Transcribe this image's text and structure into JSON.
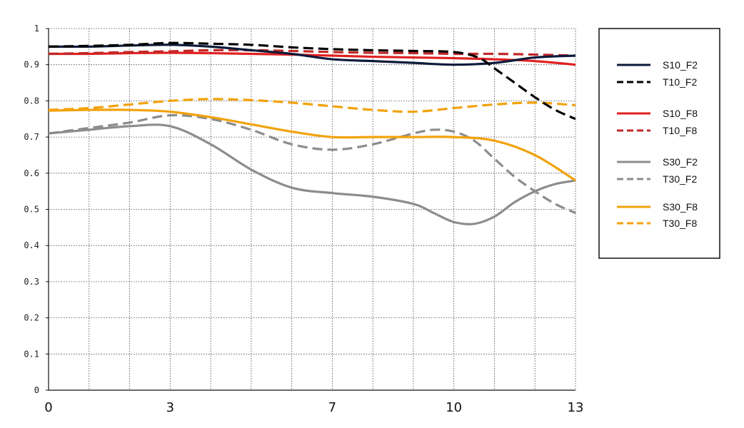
{
  "chart_data": {
    "type": "line",
    "title": "",
    "xlabel": "",
    "ylabel": "",
    "xlim": [
      0,
      13
    ],
    "ylim": [
      0,
      1
    ],
    "x_ticks": [
      0,
      3,
      7,
      10,
      13
    ],
    "x_tick_labels": [
      "0",
      "3",
      "7",
      "10",
      "13"
    ],
    "y_ticks": [
      0,
      0.1,
      0.2,
      0.3,
      0.4,
      0.5,
      0.6,
      0.7,
      0.8,
      0.9,
      1
    ],
    "y_tick_labels": [
      "0",
      "0.1",
      "0.2",
      "0.3",
      "0.4",
      "0.5",
      "0.6",
      "0.7",
      "0.8",
      "0.9",
      "1"
    ],
    "grid": true,
    "legend_position": "right",
    "series": [
      {
        "name": "S10_F2",
        "color": "#0d1a3a",
        "dash": "solid",
        "x": [
          0,
          1,
          2,
          3,
          4,
          5,
          6,
          7,
          8,
          9,
          10,
          11,
          12,
          13
        ],
        "y": [
          0.95,
          0.95,
          0.953,
          0.955,
          0.95,
          0.94,
          0.93,
          0.915,
          0.91,
          0.905,
          0.9,
          0.905,
          0.92,
          0.925
        ]
      },
      {
        "name": "T10_F2",
        "color": "#000000",
        "dash": "dashed",
        "x": [
          0,
          1,
          2,
          3,
          4,
          5,
          6,
          7,
          8,
          9,
          10,
          10.6,
          11,
          11.5,
          12,
          12.5,
          13
        ],
        "y": [
          0.95,
          0.952,
          0.955,
          0.96,
          0.958,
          0.955,
          0.948,
          0.943,
          0.94,
          0.938,
          0.935,
          0.92,
          0.89,
          0.85,
          0.81,
          0.775,
          0.75
        ]
      },
      {
        "name": "S10_F8",
        "color": "#e02020",
        "dash": "solid",
        "x": [
          0,
          1,
          2,
          3,
          4,
          5,
          6,
          7,
          8,
          9,
          10,
          11,
          12,
          13
        ],
        "y": [
          0.93,
          0.93,
          0.932,
          0.933,
          0.932,
          0.93,
          0.928,
          0.925,
          0.922,
          0.92,
          0.918,
          0.915,
          0.91,
          0.9
        ]
      },
      {
        "name": "T10_F8",
        "color": "#c02828",
        "dash": "dashed",
        "x": [
          0,
          1,
          2,
          3,
          4,
          5,
          6,
          7,
          8,
          9,
          10,
          11,
          12,
          13
        ],
        "y": [
          0.93,
          0.932,
          0.935,
          0.937,
          0.94,
          0.94,
          0.938,
          0.935,
          0.933,
          0.932,
          0.93,
          0.93,
          0.928,
          0.925
        ]
      },
      {
        "name": "S30_F2",
        "color": "#8c8c8c",
        "dash": "solid",
        "x": [
          0,
          1,
          2,
          3,
          4,
          5,
          6,
          7,
          8,
          9,
          9.5,
          10,
          10.5,
          11,
          11.5,
          12,
          12.5,
          13
        ],
        "y": [
          0.71,
          0.72,
          0.73,
          0.73,
          0.68,
          0.61,
          0.56,
          0.545,
          0.535,
          0.515,
          0.49,
          0.465,
          0.46,
          0.48,
          0.52,
          0.55,
          0.57,
          0.58
        ]
      },
      {
        "name": "T30_F2",
        "color": "#8c8c8c",
        "dash": "dashed",
        "x": [
          0,
          1,
          2,
          3,
          4,
          5,
          6,
          7,
          8,
          9,
          9.5,
          10,
          10.5,
          11,
          11.5,
          12,
          12.5,
          13
        ],
        "y": [
          0.71,
          0.725,
          0.74,
          0.76,
          0.75,
          0.72,
          0.68,
          0.665,
          0.68,
          0.71,
          0.72,
          0.715,
          0.69,
          0.64,
          0.59,
          0.55,
          0.515,
          0.49
        ]
      },
      {
        "name": "S30_F8",
        "color": "#f2a20c",
        "dash": "solid",
        "x": [
          0,
          1,
          2,
          3,
          4,
          5,
          6,
          7,
          8,
          9,
          10,
          11,
          12,
          13
        ],
        "y": [
          0.773,
          0.775,
          0.775,
          0.77,
          0.755,
          0.735,
          0.715,
          0.7,
          0.7,
          0.7,
          0.7,
          0.69,
          0.65,
          0.58
        ]
      },
      {
        "name": "T30_F8",
        "color": "#f2a20c",
        "dash": "dashed",
        "x": [
          0,
          1,
          2,
          3,
          4,
          5,
          6,
          7,
          8,
          9,
          10,
          11,
          12,
          13
        ],
        "y": [
          0.775,
          0.78,
          0.79,
          0.8,
          0.805,
          0.802,
          0.795,
          0.785,
          0.775,
          0.77,
          0.78,
          0.79,
          0.795,
          0.788
        ]
      }
    ]
  }
}
